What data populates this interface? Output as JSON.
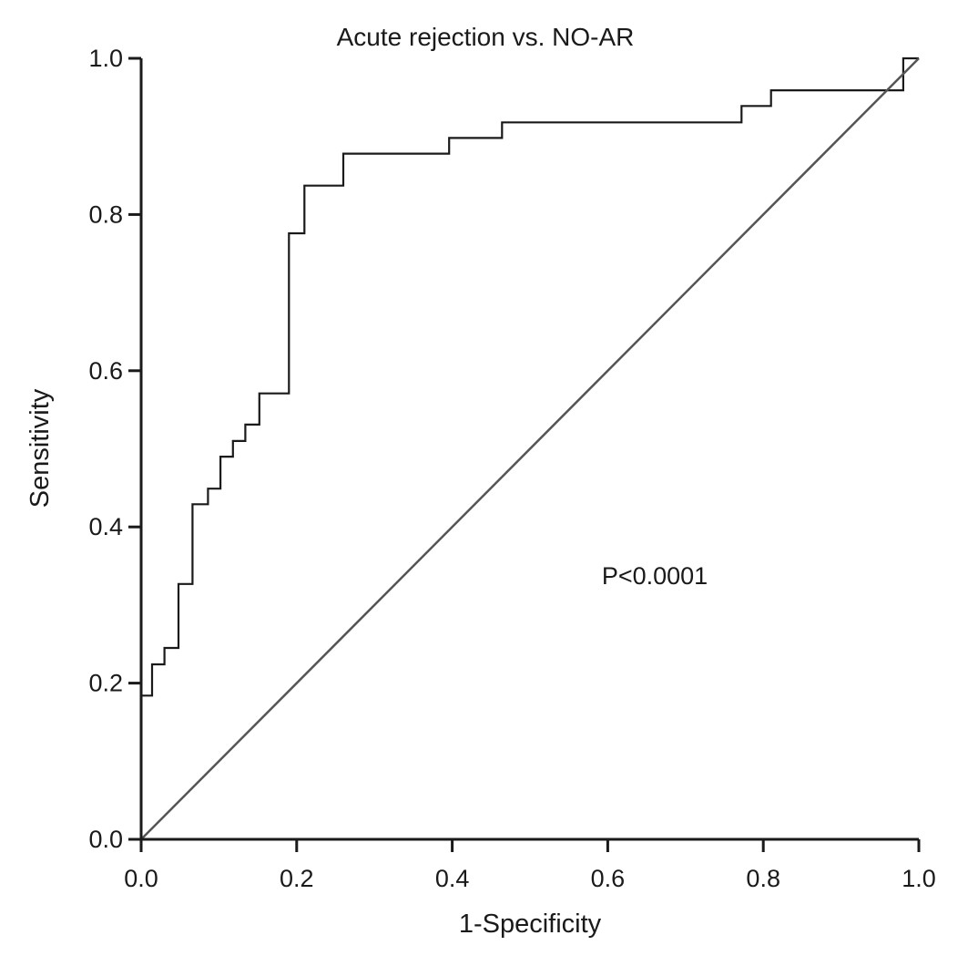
{
  "chart_data": {
    "type": "line",
    "title": "Acute rejection vs. NO-AR",
    "xlabel": "1-Specificity",
    "ylabel": "Sensitivity",
    "xlim": [
      0.0,
      1.0
    ],
    "ylim": [
      0.0,
      1.0
    ],
    "xticks": [
      "0.0",
      "0.2",
      "0.4",
      "0.6",
      "0.8",
      "1.0"
    ],
    "yticks": [
      "0.0",
      "0.2",
      "0.4",
      "0.6",
      "0.8",
      "1.0"
    ],
    "grid": false,
    "annotation": "P<0.0001",
    "series": [
      {
        "kind": "roc-step",
        "color": "#1a1a1a",
        "x": [
          0.0,
          0.0,
          0.014,
          0.014,
          0.03,
          0.03,
          0.048,
          0.048,
          0.066,
          0.066,
          0.086,
          0.086,
          0.102,
          0.102,
          0.118,
          0.118,
          0.134,
          0.134,
          0.152,
          0.152,
          0.19,
          0.19,
          0.21,
          0.21,
          0.26,
          0.26,
          0.396,
          0.396,
          0.464,
          0.464,
          0.772,
          0.772,
          0.81,
          0.81,
          0.98,
          0.98,
          1.0
        ],
        "y": [
          0.0,
          0.184,
          0.184,
          0.224,
          0.224,
          0.245,
          0.245,
          0.327,
          0.327,
          0.429,
          0.429,
          0.449,
          0.449,
          0.49,
          0.49,
          0.51,
          0.51,
          0.531,
          0.531,
          0.571,
          0.571,
          0.776,
          0.776,
          0.837,
          0.837,
          0.878,
          0.878,
          0.898,
          0.898,
          0.918,
          0.918,
          0.939,
          0.939,
          0.959,
          0.959,
          1.0,
          1.0
        ]
      },
      {
        "kind": "reference-diagonal",
        "color": "#555555",
        "x": [
          0.0,
          1.0
        ],
        "y": [
          0.0,
          1.0
        ]
      }
    ]
  }
}
